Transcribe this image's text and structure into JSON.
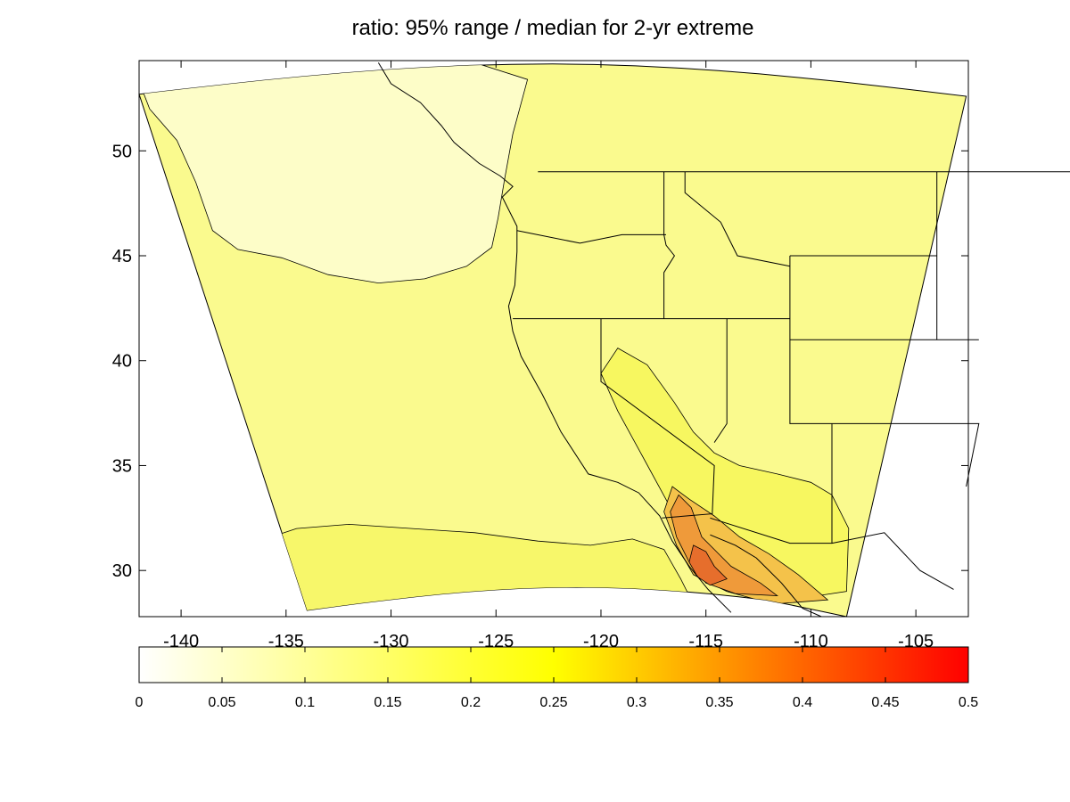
{
  "title": "ratio: 95% range / median for 2-yr extreme",
  "map": {
    "x_ticks": [
      "-140",
      "-135",
      "-130",
      "-125",
      "-120",
      "-115",
      "-110",
      "-105"
    ],
    "x_tick_values": [
      -140,
      -135,
      -130,
      -125,
      -120,
      -115,
      -110,
      -105
    ],
    "y_ticks": [
      "30",
      "35",
      "40",
      "45",
      "50"
    ],
    "y_tick_values": [
      30,
      35,
      40,
      45,
      50
    ],
    "xlim": [
      -142,
      -102.5
    ],
    "ylim": [
      27.8,
      54.3
    ],
    "fill_colors": {
      "ocean_north": "#fdfdc8",
      "background": "#fafa8e",
      "south_band": "#f7f76a",
      "mid_yellow": "#f7f760",
      "orange_light": "#f4c24a",
      "orange": "#ef9a3a",
      "orange_dark": "#e66e2c"
    },
    "line_color": "#000000"
  },
  "colorbar": {
    "ticks": [
      "0",
      "0.05",
      "0.1",
      "0.15",
      "0.2",
      "0.25",
      "0.3",
      "0.35",
      "0.4",
      "0.45",
      "0.5"
    ],
    "tick_values": [
      0,
      0.05,
      0.1,
      0.15,
      0.2,
      0.25,
      0.3,
      0.35,
      0.4,
      0.45,
      0.5
    ],
    "range": [
      0,
      0.5
    ],
    "colors": [
      "#ffffff",
      "#ffff00",
      "#ff0000"
    ]
  }
}
